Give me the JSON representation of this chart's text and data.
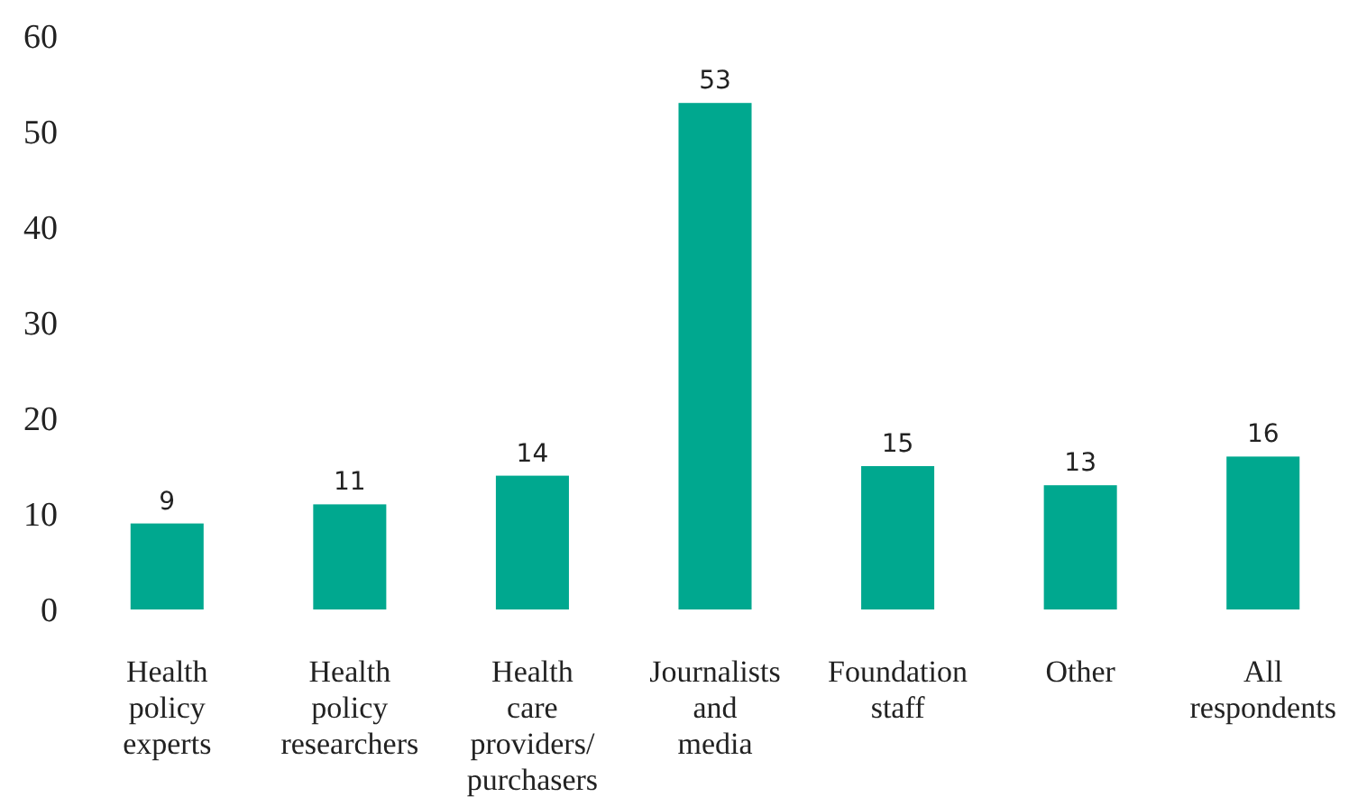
{
  "chart_data": {
    "type": "bar",
    "categories": [
      "Health policy experts",
      "Health policy researchers",
      "Health care providers/ purchasers",
      "Journalists and media",
      "Foundation staff",
      "Other",
      "All respondents"
    ],
    "values": [
      9,
      11,
      14,
      53,
      15,
      13,
      16
    ],
    "color": "#00a88f",
    "ylim": [
      0,
      60
    ],
    "yticks": [
      0,
      10,
      20,
      30,
      40,
      50,
      60
    ],
    "data_labels": true
  }
}
